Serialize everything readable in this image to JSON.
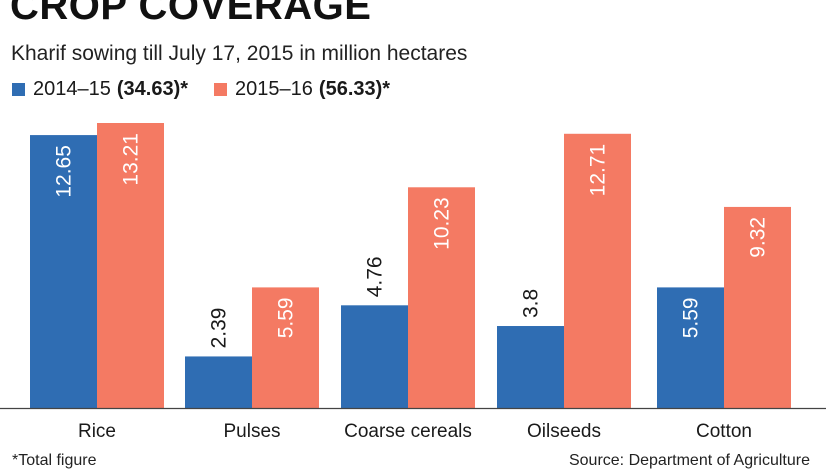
{
  "header": {
    "title": "CROP COVERAGE",
    "subtitle": "Kharif sowing till July 17, 2015 in million hectares"
  },
  "legend": [
    {
      "label": "2014–15",
      "total": "(34.63)*",
      "color": "#2f6db3"
    },
    {
      "label": "2015–16",
      "total": "(56.33)*",
      "color": "#f47a63"
    }
  ],
  "footer": {
    "footnote": "*Total figure",
    "source": "Source: Department of Agriculture"
  },
  "chart_data": {
    "type": "bar",
    "categories": [
      "Rice",
      "Pulses",
      "Coarse cereals",
      "Oilseeds",
      "Cotton"
    ],
    "series": [
      {
        "name": "2014–15",
        "values": [
          12.65,
          2.39,
          4.76,
          3.8,
          5.59
        ],
        "labels": [
          "12.65",
          "2.39",
          "4.76",
          "3.8",
          "5.59"
        ],
        "color": "#2f6db3"
      },
      {
        "name": "2015–16",
        "values": [
          13.21,
          5.59,
          10.23,
          12.71,
          9.32
        ],
        "labels": [
          "13.21",
          "5.59",
          "10.23",
          "12.71",
          "9.32"
        ],
        "color": "#f47a63"
      }
    ],
    "title": "CROP COVERAGE",
    "xlabel": "",
    "ylabel": "",
    "ylim": [
      0,
      13.21
    ],
    "grid": false,
    "legend_position": "top-left"
  }
}
